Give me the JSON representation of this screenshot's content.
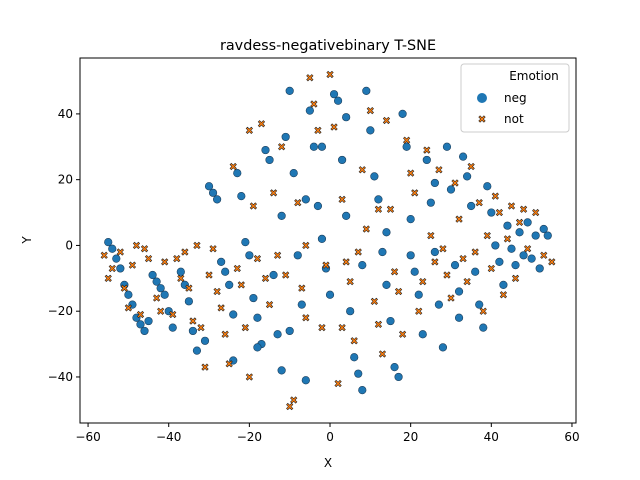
{
  "chart_data": {
    "type": "scatter",
    "title": "ravdess-negativebinary T-SNE",
    "xlabel": "X",
    "ylabel": "Y",
    "xlim": [
      -62,
      61
    ],
    "ylim": [
      -54,
      57
    ],
    "xticks": [
      -60,
      -40,
      -20,
      0,
      20,
      40,
      60
    ],
    "yticks": [
      -40,
      -20,
      0,
      20,
      40
    ],
    "grid": false,
    "legend": {
      "title": "Emotion",
      "placement": "top-right"
    },
    "series": [
      {
        "name": "neg",
        "marker": "circle",
        "color": "#1f77b4",
        "points": [
          [
            -55,
            1
          ],
          [
            -54,
            -1
          ],
          [
            -53,
            -4
          ],
          [
            -52,
            -7
          ],
          [
            -51,
            -12
          ],
          [
            -50,
            -15
          ],
          [
            -49,
            -18
          ],
          [
            -48,
            -22
          ],
          [
            -47,
            -24
          ],
          [
            -46,
            -26
          ],
          [
            -45,
            -23
          ],
          [
            -44,
            -9
          ],
          [
            -43,
            -11
          ],
          [
            -42,
            -13
          ],
          [
            -41,
            -15
          ],
          [
            -40,
            -20
          ],
          [
            -39,
            -25
          ],
          [
            -37,
            -8
          ],
          [
            -36,
            -12
          ],
          [
            -35,
            -17
          ],
          [
            -34,
            -26
          ],
          [
            -33,
            -32
          ],
          [
            -31,
            -29
          ],
          [
            -30,
            18
          ],
          [
            -29,
            16
          ],
          [
            -28,
            14
          ],
          [
            -27,
            -5
          ],
          [
            -26,
            -8
          ],
          [
            -25,
            -12
          ],
          [
            -24,
            -35
          ],
          [
            -23,
            22
          ],
          [
            -22,
            15
          ],
          [
            -21,
            1
          ],
          [
            -20,
            -3
          ],
          [
            -19,
            -16
          ],
          [
            -18,
            -22
          ],
          [
            -17,
            -30
          ],
          [
            -16,
            29
          ],
          [
            -15,
            26
          ],
          [
            -14,
            -9
          ],
          [
            -13,
            -27
          ],
          [
            -12,
            -38
          ],
          [
            -11,
            33
          ],
          [
            -10,
            47
          ],
          [
            -9,
            22
          ],
          [
            -8,
            -3
          ],
          [
            -7,
            -18
          ],
          [
            -6,
            -41
          ],
          [
            -5,
            41
          ],
          [
            -4,
            30
          ],
          [
            -3,
            12
          ],
          [
            -2,
            2
          ],
          [
            -1,
            -7
          ],
          [
            0,
            -15
          ],
          [
            1,
            46
          ],
          [
            2,
            44
          ],
          [
            3,
            26
          ],
          [
            4,
            9
          ],
          [
            5,
            -20
          ],
          [
            6,
            -34
          ],
          [
            7,
            -39
          ],
          [
            8,
            -44
          ],
          [
            9,
            47
          ],
          [
            10,
            35
          ],
          [
            11,
            21
          ],
          [
            12,
            14
          ],
          [
            13,
            -2
          ],
          [
            14,
            -12
          ],
          [
            15,
            -23
          ],
          [
            16,
            -37
          ],
          [
            17,
            -40
          ],
          [
            18,
            40
          ],
          [
            19,
            30
          ],
          [
            20,
            8
          ],
          [
            21,
            -8
          ],
          [
            22,
            -15
          ],
          [
            23,
            -27
          ],
          [
            24,
            26
          ],
          [
            25,
            13
          ],
          [
            26,
            -2
          ],
          [
            27,
            -18
          ],
          [
            28,
            -31
          ],
          [
            29,
            30
          ],
          [
            30,
            17
          ],
          [
            31,
            -6
          ],
          [
            32,
            -22
          ],
          [
            33,
            27
          ],
          [
            34,
            21
          ],
          [
            35,
            12
          ],
          [
            36,
            -8
          ],
          [
            37,
            -18
          ],
          [
            38,
            -25
          ],
          [
            39,
            18
          ],
          [
            40,
            10
          ],
          [
            41,
            0
          ],
          [
            42,
            -5
          ],
          [
            43,
            -12
          ],
          [
            44,
            6
          ],
          [
            45,
            -1
          ],
          [
            46,
            -6
          ],
          [
            47,
            4
          ],
          [
            48,
            -3
          ],
          [
            49,
            7
          ],
          [
            50,
            -4
          ],
          [
            51,
            3
          ],
          [
            52,
            -7
          ],
          [
            53,
            5
          ],
          [
            54,
            3
          ],
          [
            -2,
            30
          ],
          [
            4,
            39
          ],
          [
            -6,
            14
          ],
          [
            14,
            4
          ],
          [
            -24,
            -21
          ],
          [
            20,
            -3
          ],
          [
            -12,
            9
          ],
          [
            8,
            -6
          ],
          [
            -18,
            -31
          ],
          [
            26,
            19
          ],
          [
            -10,
            -26
          ],
          [
            32,
            -14
          ]
        ]
      },
      {
        "name": "not",
        "marker": "x",
        "color": "#ff7f0e",
        "points": [
          [
            -56,
            -3
          ],
          [
            -55,
            -10
          ],
          [
            -54,
            -7
          ],
          [
            -52,
            -2
          ],
          [
            -51,
            -13
          ],
          [
            -50,
            -19
          ],
          [
            -49,
            -6
          ],
          [
            -48,
            0
          ],
          [
            -47,
            -21
          ],
          [
            -46,
            -1
          ],
          [
            -45,
            -4
          ],
          [
            -43,
            -16
          ],
          [
            -42,
            -20
          ],
          [
            -41,
            -5
          ],
          [
            -39,
            -21
          ],
          [
            -38,
            -4
          ],
          [
            -37,
            -10
          ],
          [
            -36,
            -2
          ],
          [
            -35,
            -13
          ],
          [
            -34,
            -23
          ],
          [
            -33,
            0
          ],
          [
            -32,
            -25
          ],
          [
            -31,
            -37
          ],
          [
            -30,
            -9
          ],
          [
            -29,
            -1
          ],
          [
            -28,
            -14
          ],
          [
            -27,
            -19
          ],
          [
            -26,
            -27
          ],
          [
            -25,
            -36
          ],
          [
            -24,
            24
          ],
          [
            -23,
            -7
          ],
          [
            -22,
            -12
          ],
          [
            -21,
            -25
          ],
          [
            -20,
            35
          ],
          [
            -19,
            12
          ],
          [
            -18,
            -4
          ],
          [
            -17,
            37
          ],
          [
            -16,
            -10
          ],
          [
            -15,
            -18
          ],
          [
            -14,
            16
          ],
          [
            -13,
            -3
          ],
          [
            -12,
            30
          ],
          [
            -11,
            -9
          ],
          [
            -10,
            -49
          ],
          [
            -9,
            -47
          ],
          [
            -8,
            13
          ],
          [
            -7,
            -13
          ],
          [
            -6,
            -22
          ],
          [
            -5,
            51
          ],
          [
            -4,
            43
          ],
          [
            -3,
            35
          ],
          [
            -2,
            -25
          ],
          [
            -1,
            -6
          ],
          [
            0,
            52
          ],
          [
            1,
            36
          ],
          [
            2,
            -42
          ],
          [
            3,
            14
          ],
          [
            4,
            -5
          ],
          [
            5,
            -11
          ],
          [
            6,
            -29
          ],
          [
            7,
            -2
          ],
          [
            8,
            23
          ],
          [
            9,
            5
          ],
          [
            10,
            41
          ],
          [
            11,
            -17
          ],
          [
            12,
            -24
          ],
          [
            13,
            -33
          ],
          [
            14,
            38
          ],
          [
            15,
            11
          ],
          [
            16,
            -8
          ],
          [
            17,
            -14
          ],
          [
            18,
            -27
          ],
          [
            19,
            32
          ],
          [
            20,
            22
          ],
          [
            21,
            16
          ],
          [
            22,
            -20
          ],
          [
            23,
            -11
          ],
          [
            24,
            29
          ],
          [
            25,
            3
          ],
          [
            26,
            -5
          ],
          [
            27,
            23
          ],
          [
            28,
            -1
          ],
          [
            29,
            -9
          ],
          [
            30,
            -16
          ],
          [
            31,
            19
          ],
          [
            32,
            8
          ],
          [
            33,
            -4
          ],
          [
            34,
            -11
          ],
          [
            35,
            24
          ],
          [
            36,
            -2
          ],
          [
            37,
            13
          ],
          [
            38,
            -20
          ],
          [
            39,
            3
          ],
          [
            40,
            -7
          ],
          [
            41,
            15
          ],
          [
            42,
            10
          ],
          [
            43,
            -15
          ],
          [
            44,
            2
          ],
          [
            45,
            12
          ],
          [
            46,
            -10
          ],
          [
            47,
            7
          ],
          [
            48,
            11
          ],
          [
            49,
            -1
          ],
          [
            51,
            10
          ],
          [
            53,
            -3
          ],
          [
            55,
            -5
          ],
          [
            -20,
            -40
          ],
          [
            -6,
            0
          ],
          [
            3,
            -25
          ],
          [
            12,
            11
          ]
        ]
      }
    ]
  }
}
